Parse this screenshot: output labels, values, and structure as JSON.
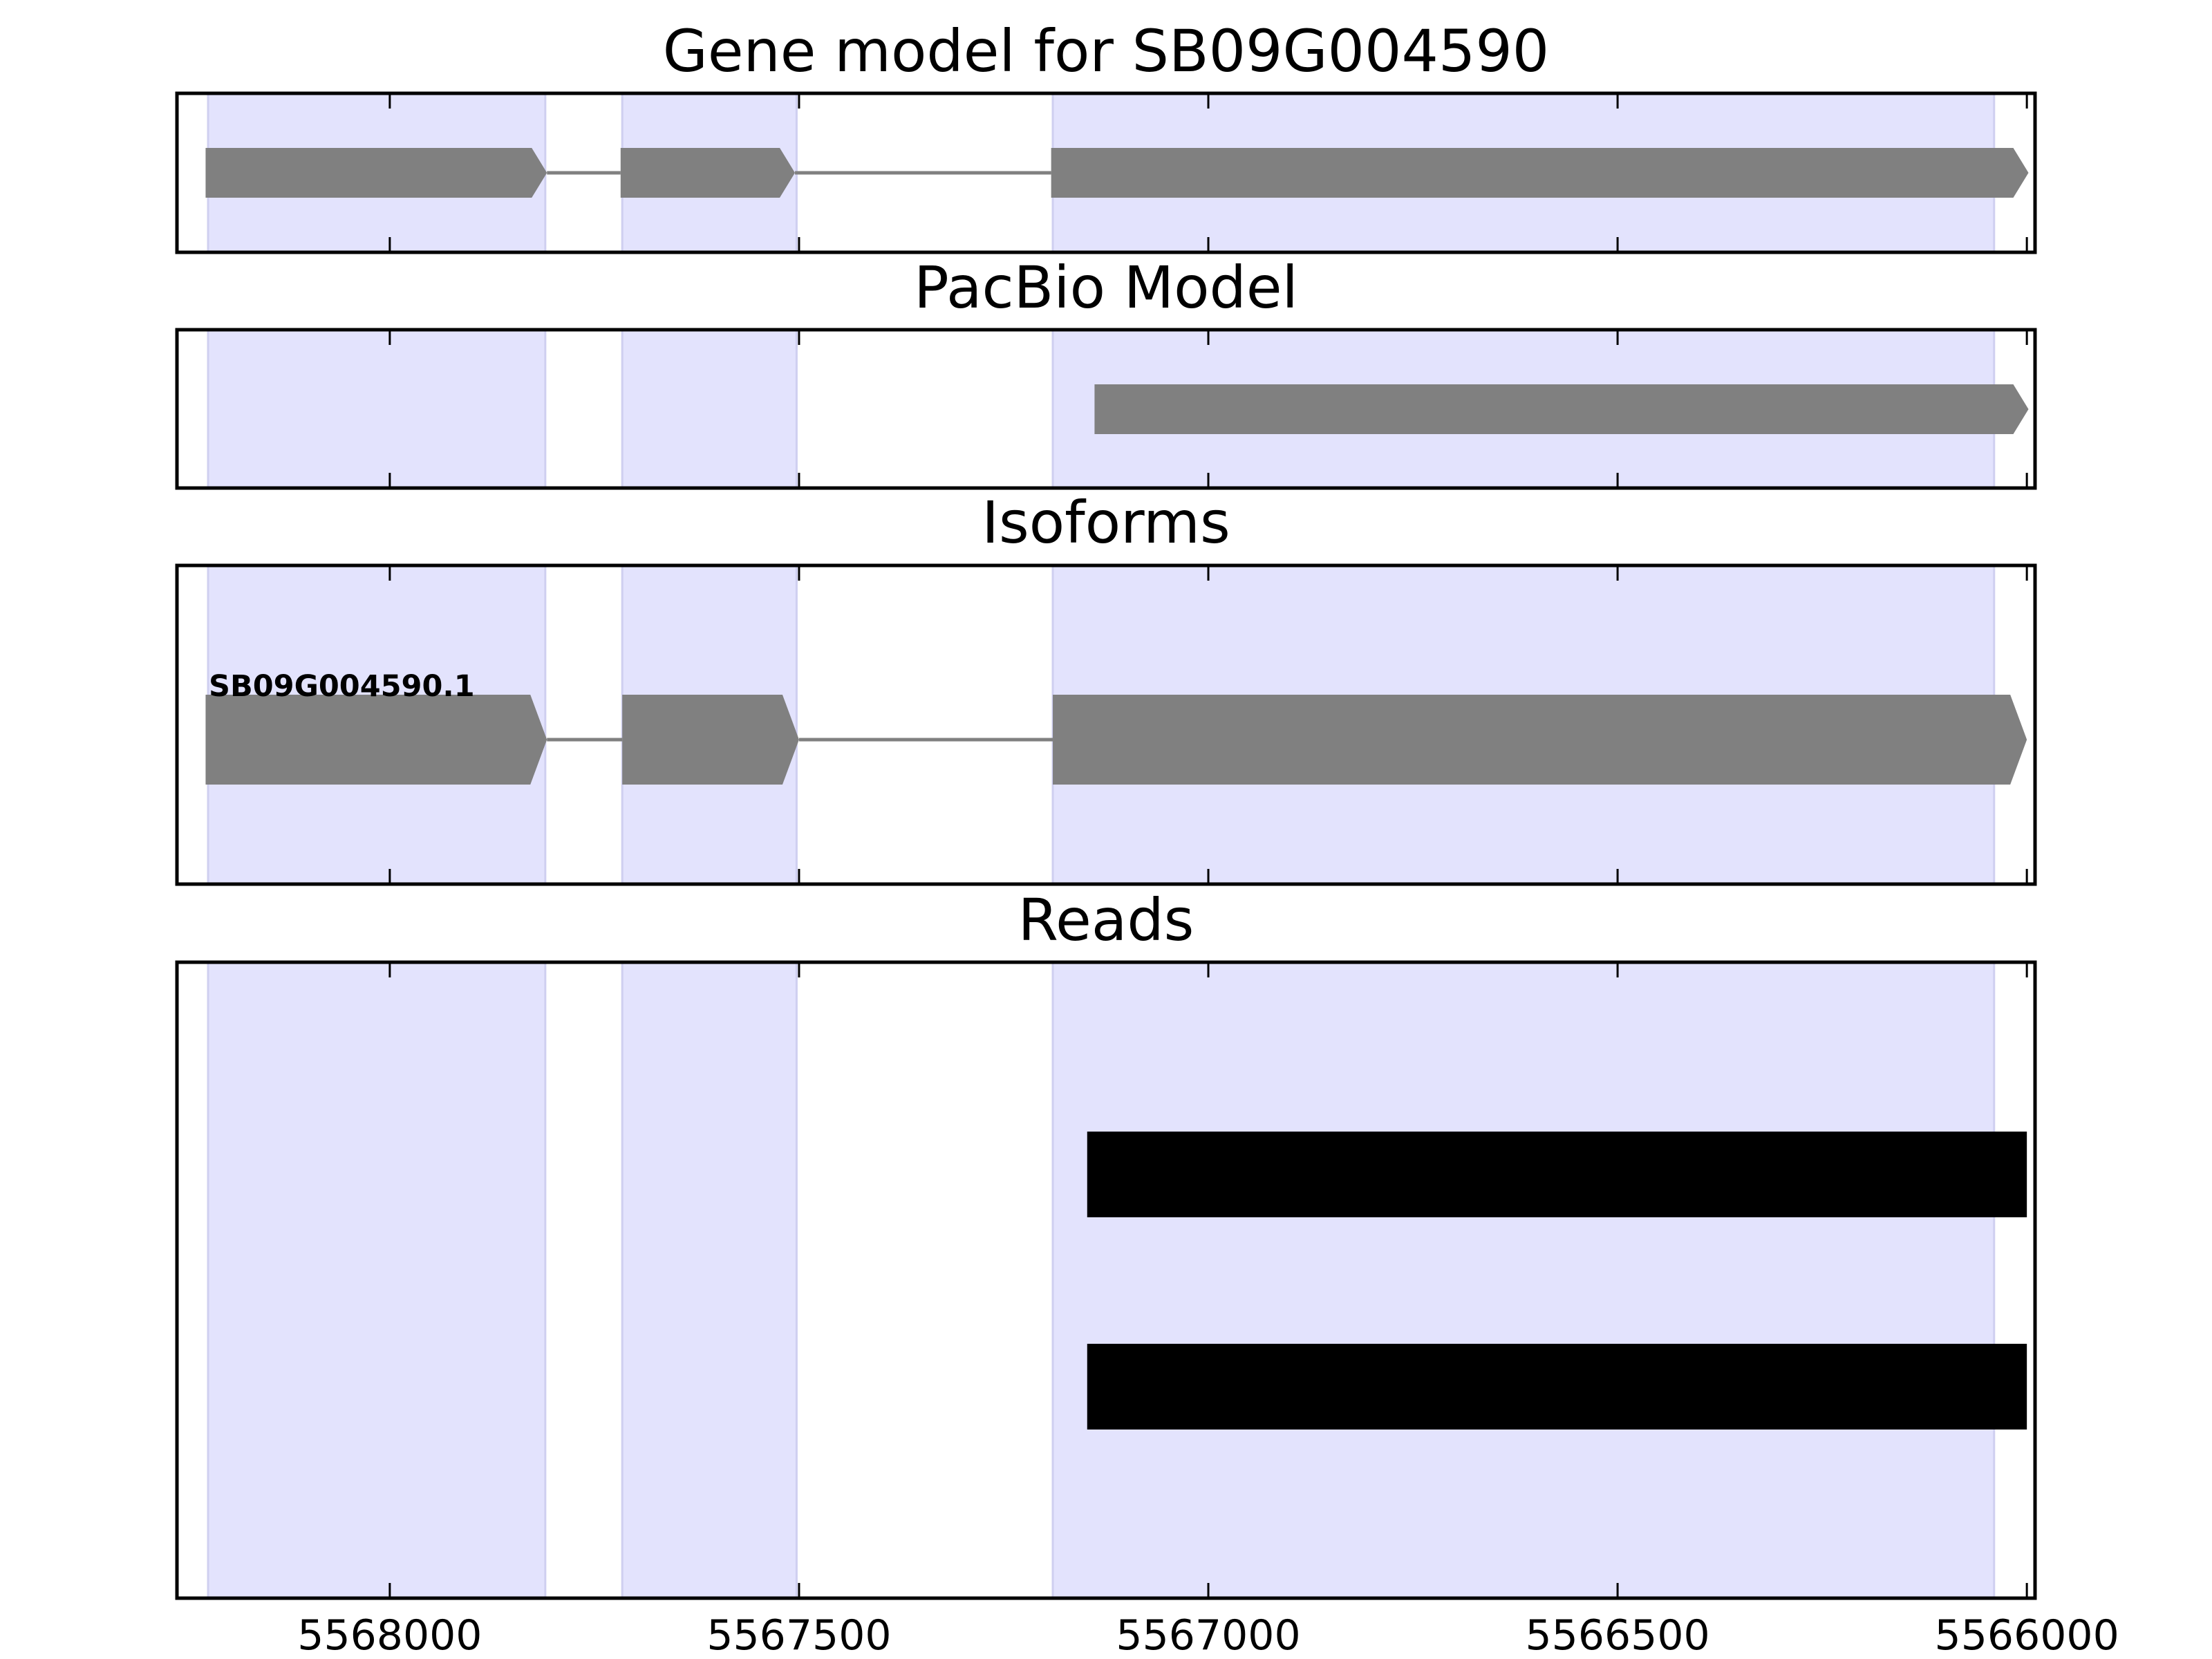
{
  "chart_data": [
    {
      "type": "gene_track",
      "panel": "gene-model",
      "title": "Gene model for SB09G004590",
      "xlim": [
        5568260,
        5565990
      ],
      "features": [
        {
          "kind": "exon",
          "start": 5568225,
          "end": 5567808,
          "arrow": true
        },
        {
          "kind": "intron",
          "start": 5567808,
          "end": 5567718
        },
        {
          "kind": "exon",
          "start": 5567718,
          "end": 5567505,
          "arrow": true
        },
        {
          "kind": "intron",
          "start": 5567505,
          "end": 5567192
        },
        {
          "kind": "exon",
          "start": 5567192,
          "end": 5565998,
          "arrow": true
        }
      ]
    },
    {
      "type": "gene_track",
      "panel": "pacbio-model",
      "title": "PacBio Model",
      "xlim": [
        5568260,
        5565990
      ],
      "features": [
        {
          "kind": "exon",
          "start": 5567139,
          "end": 5565998,
          "arrow": true
        }
      ]
    },
    {
      "type": "gene_track",
      "panel": "isoforms",
      "title": "Isoforms",
      "xlim": [
        5568260,
        5565990
      ],
      "isoform_label": "SB09G004590.1",
      "features": [
        {
          "kind": "exon",
          "start": 5568225,
          "end": 5567808,
          "arrow": true
        },
        {
          "kind": "intron",
          "start": 5567808,
          "end": 5567716
        },
        {
          "kind": "exon",
          "start": 5567716,
          "end": 5567500,
          "arrow": true
        },
        {
          "kind": "intron",
          "start": 5567500,
          "end": 5567190
        },
        {
          "kind": "exon",
          "start": 5567190,
          "end": 5566000,
          "arrow": true
        }
      ]
    },
    {
      "type": "read_track",
      "panel": "reads",
      "title": "Reads",
      "xlim": [
        5568260,
        5565990
      ],
      "xticks": [
        5568000,
        5567500,
        5567000,
        5566500,
        5566000
      ],
      "xtick_labels": [
        "5568000",
        "5567500",
        "5567000",
        "5566500",
        "5566000"
      ],
      "reads": [
        {
          "start": 5567148,
          "end": 5566000
        },
        {
          "start": 5567148,
          "end": 5566000
        }
      ]
    }
  ],
  "exon_regions": [
    {
      "start": 5568222,
      "end": 5567810
    },
    {
      "start": 5567716,
      "end": 5567503
    },
    {
      "start": 5567190,
      "end": 5566040
    }
  ],
  "colors": {
    "region_fill": "#e3e3fd",
    "region_edge": "#cfcff0",
    "exon_fill": "#808080",
    "intron_line": "#808080",
    "read_fill": "#000000",
    "axes_edge": "#000000"
  }
}
